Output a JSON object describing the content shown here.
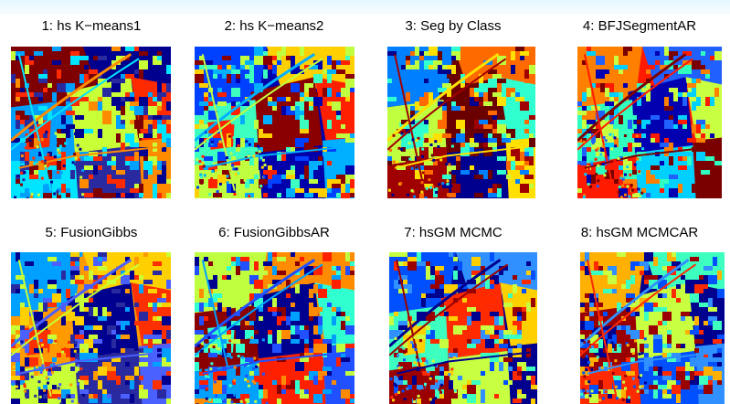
{
  "panels": [
    {
      "title": "1: hs K−means1",
      "palette": [
        "#7f0000",
        "#ff2a00",
        "#ff8c00",
        "#00008f",
        "#00a0ff",
        "#00e5ff",
        "#c8ff36",
        "#2a2aa0"
      ]
    },
    {
      "title": "2: hs K−means2",
      "palette": [
        "#0000aa",
        "#0040ff",
        "#ff2000",
        "#00b0ff",
        "#ffd000",
        "#3cffc0",
        "#c0ff40",
        "#8a0000"
      ]
    },
    {
      "title": "3: Seg by Class",
      "palette": [
        "#6a0000",
        "#00008f",
        "#0080ff",
        "#30ffd0",
        "#ffe000",
        "#ff6a00",
        "#c0ff40",
        "#a00000"
      ]
    },
    {
      "title": "4: BFJSegmentAR",
      "palette": [
        "#ff1a00",
        "#0000b0",
        "#00d0ff",
        "#ff8000",
        "#c8ff40",
        "#7a0000",
        "#2060ff",
        "#30ffc0"
      ]
    },
    {
      "title": "5: FusionGibbs",
      "palette": [
        "#ff9a00",
        "#c8ff36",
        "#00008f",
        "#2a2aa0",
        "#00a0ff",
        "#ff3000",
        "#4a60ff",
        "#ffd000"
      ]
    },
    {
      "title": "6: FusionGibbsAR",
      "palette": [
        "#ff8c00",
        "#8a0000",
        "#00a0ff",
        "#00008f",
        "#ff2000",
        "#c0ff40",
        "#30ffd0",
        "#2050ff"
      ]
    },
    {
      "title": "7: hsGM MCMC",
      "palette": [
        "#00008f",
        "#3090ff",
        "#3cffc0",
        "#9a0000",
        "#ff2a00",
        "#c8ff40",
        "#0050ff",
        "#ffd000"
      ]
    },
    {
      "title": "8: hsGM MCMCAR",
      "palette": [
        "#00008f",
        "#3090ff",
        "#3cffc0",
        "#9a0000",
        "#ff2a00",
        "#c8ff40",
        "#0050ff",
        "#ffb000"
      ]
    }
  ]
}
